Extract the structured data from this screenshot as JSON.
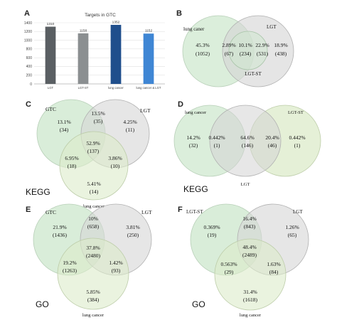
{
  "panels": {
    "A": {
      "letter": "A",
      "chart_data": {
        "type": "bar",
        "title": "Targets in GTC",
        "categories": [
          "LGT",
          "LGT-ST",
          "lung cancer",
          "lung cancer & LGT"
        ],
        "values": [
          1310,
          1158,
          1352,
          1152
        ],
        "value_labels": [
          "1310",
          "1158",
          "1352",
          "1152"
        ],
        "ylim": [
          0,
          1400
        ],
        "yticks": [
          "0",
          "200",
          "400",
          "600",
          "800",
          "1000",
          "1200",
          "1400"
        ],
        "colors": [
          "#5a5f63",
          "#8b8f91",
          "#1f4e8c",
          "#3f86d4"
        ],
        "grid": true
      }
    },
    "B": {
      "letter": "B",
      "chart_data": {
        "type": "venn",
        "sets": [
          "lung caner",
          "LGT",
          "LGT-ST"
        ],
        "regions": [
          {
            "pct": "45.3%",
            "count": "(1052)"
          },
          {
            "pct": "2.89%",
            "count": "(67)"
          },
          {
            "pct": "10.1%",
            "count": "(234)"
          },
          {
            "pct": "22.9%",
            "count": "(531)"
          },
          {
            "pct": "18.9%",
            "count": "(438)"
          }
        ]
      }
    },
    "C": {
      "letter": "C",
      "footer": "KEGG",
      "chart_data": {
        "type": "venn",
        "sets": [
          "GTC",
          "LGT",
          "lung cancer"
        ],
        "regions": [
          {
            "pct": "13.1%",
            "count": "(34)"
          },
          {
            "pct": "13.5%",
            "count": "(35)"
          },
          {
            "pct": "4.25%",
            "count": "(11)"
          },
          {
            "pct": "52.9%",
            "count": "(137)"
          },
          {
            "pct": "6.95%",
            "count": "(18)"
          },
          {
            "pct": "3.86%",
            "count": "(10)"
          },
          {
            "pct": "5.41%",
            "count": "(14)"
          }
        ]
      }
    },
    "D": {
      "letter": "D",
      "footer": "KEGG",
      "chart_data": {
        "type": "venn",
        "sets": [
          "lung cancer",
          "LGT-ST",
          "LGT"
        ],
        "regions": [
          {
            "pct": "14.2%",
            "count": "(32)"
          },
          {
            "pct": "0.442%",
            "count": "(1)"
          },
          {
            "pct": "64.6%",
            "count": "(146)"
          },
          {
            "pct": "20.4%",
            "count": "(46)"
          },
          {
            "pct": "0.442%",
            "count": "(1)"
          }
        ]
      }
    },
    "E": {
      "letter": "E",
      "footer": "GO",
      "chart_data": {
        "type": "venn",
        "sets": [
          "GTC",
          "LGT",
          "lung cancer"
        ],
        "regions": [
          {
            "pct": "21.9%",
            "count": "(1436)"
          },
          {
            "pct": "10%",
            "count": "(658)"
          },
          {
            "pct": "3.81%",
            "count": "(250)"
          },
          {
            "pct": "37.8%",
            "count": "(2480)"
          },
          {
            "pct": "19.2%",
            "count": "(1263)"
          },
          {
            "pct": "1.42%",
            "count": "(93)"
          },
          {
            "pct": "5.85%",
            "count": "(384)"
          }
        ]
      }
    },
    "F": {
      "letter": "F",
      "footer": "GO",
      "chart_data": {
        "type": "venn",
        "sets": [
          "LGT-ST",
          "LGT",
          "lung cancer"
        ],
        "regions": [
          {
            "pct": "0.369%",
            "count": "(19)"
          },
          {
            "pct": "16.4%",
            "count": "(843)"
          },
          {
            "pct": "1.26%",
            "count": "(65)"
          },
          {
            "pct": "48.4%",
            "count": "(2489)"
          },
          {
            "pct": "0.563%",
            "count": "(29)"
          },
          {
            "pct": "1.63%",
            "count": "(84)"
          },
          {
            "pct": "31.4%",
            "count": "(1618)"
          }
        ]
      }
    }
  },
  "colors": {
    "green_fill": "#cfe8cf",
    "gray_fill": "#d4d4d4",
    "light_green": "#dcebc9",
    "outline": "#b5b5b5"
  }
}
